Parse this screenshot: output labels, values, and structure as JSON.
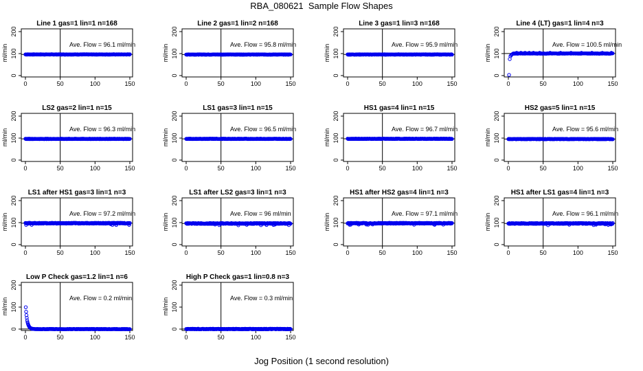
{
  "title": "RBA_080621  Sample Flow Shapes",
  "xlabel": "Jog Position (1 second resolution)",
  "chart_data": [
    {
      "type": "scatter",
      "title": "Line 1 gas=1 lin=1 n=168",
      "ylabel": "ml/min",
      "annotation": "Ave. Flow = 96.1  ml/min",
      "xlim": [
        0,
        150
      ],
      "ylim": [
        0,
        200
      ],
      "xticks": [
        0,
        50,
        100,
        150
      ],
      "yticks": [
        0,
        100,
        200
      ],
      "hline": 96.1,
      "vline": 50,
      "shape": "flat",
      "level": 96.1
    },
    {
      "type": "scatter",
      "title": "Line 2 gas=1 lin=2 n=168",
      "ylabel": "ml/min",
      "annotation": "Ave. Flow = 95.8  ml/min",
      "xlim": [
        0,
        150
      ],
      "ylim": [
        0,
        200
      ],
      "xticks": [
        0,
        50,
        100,
        150
      ],
      "yticks": [
        0,
        100,
        200
      ],
      "hline": 95.8,
      "vline": 50,
      "shape": "flat",
      "level": 95.8
    },
    {
      "type": "scatter",
      "title": "Line 3 gas=1 lin=3 n=168",
      "ylabel": "ml/min",
      "annotation": "Ave. Flow = 95.9  ml/min",
      "xlim": [
        0,
        150
      ],
      "ylim": [
        0,
        200
      ],
      "xticks": [
        0,
        50,
        100,
        150
      ],
      "yticks": [
        0,
        100,
        200
      ],
      "hline": 95.9,
      "vline": 50,
      "shape": "flat",
      "level": 95.9
    },
    {
      "type": "scatter",
      "title": "Line 4 (LT) gas=1 lin=4 n=3",
      "ylabel": "ml/min",
      "annotation": "Ave. Flow = 100.5  ml/min",
      "xlim": [
        0,
        150
      ],
      "ylim": [
        0,
        200
      ],
      "xticks": [
        0,
        50,
        100,
        150
      ],
      "yticks": [
        0,
        100,
        200
      ],
      "hline": 100.5,
      "vline": 50,
      "shape": "rise",
      "level": 100.5
    },
    {
      "type": "scatter",
      "title": "LS2 gas=2 lin=1 n=15",
      "ylabel": "ml/min",
      "annotation": "Ave. Flow = 96.3  ml/min",
      "xlim": [
        0,
        150
      ],
      "ylim": [
        0,
        200
      ],
      "xticks": [
        0,
        50,
        100,
        150
      ],
      "yticks": [
        0,
        100,
        200
      ],
      "hline": 96.3,
      "vline": 50,
      "shape": "flat",
      "level": 96.3
    },
    {
      "type": "scatter",
      "title": "LS1 gas=3 lin=1 n=15",
      "ylabel": "ml/min",
      "annotation": "Ave. Flow = 96.5  ml/min",
      "xlim": [
        0,
        150
      ],
      "ylim": [
        0,
        200
      ],
      "xticks": [
        0,
        50,
        100,
        150
      ],
      "yticks": [
        0,
        100,
        200
      ],
      "hline": 96.5,
      "vline": 50,
      "shape": "flat",
      "level": 96.5
    },
    {
      "type": "scatter",
      "title": "HS1 gas=4 lin=1 n=15",
      "ylabel": "ml/min",
      "annotation": "Ave. Flow = 96.7  ml/min",
      "xlim": [
        0,
        150
      ],
      "ylim": [
        0,
        200
      ],
      "xticks": [
        0,
        50,
        100,
        150
      ],
      "yticks": [
        0,
        100,
        200
      ],
      "hline": 96.7,
      "vline": 50,
      "shape": "flat",
      "level": 96.7
    },
    {
      "type": "scatter",
      "title": "HS2 gas=5 lin=1 n=15",
      "ylabel": "ml/min",
      "annotation": "Ave. Flow = 95.6  ml/min",
      "xlim": [
        0,
        150
      ],
      "ylim": [
        0,
        200
      ],
      "xticks": [
        0,
        50,
        100,
        150
      ],
      "yticks": [
        0,
        100,
        200
      ],
      "hline": 95.6,
      "vline": 50,
      "shape": "flat",
      "level": 95.6
    },
    {
      "type": "scatter",
      "title": "LS1 after HS1 gas=3 lin=1 n=3",
      "ylabel": "ml/min",
      "annotation": "Ave. Flow = 97.2  ml/min",
      "xlim": [
        0,
        150
      ],
      "ylim": [
        0,
        200
      ],
      "xticks": [
        0,
        50,
        100,
        150
      ],
      "yticks": [
        0,
        100,
        200
      ],
      "hline": 97.2,
      "vline": 50,
      "shape": "noisy",
      "level": 97.2
    },
    {
      "type": "scatter",
      "title": "LS1 after LS2 gas=3 lin=1 n=3",
      "ylabel": "ml/min",
      "annotation": "Ave. Flow = 96  ml/min",
      "xlim": [
        0,
        150
      ],
      "ylim": [
        0,
        200
      ],
      "xticks": [
        0,
        50,
        100,
        150
      ],
      "yticks": [
        0,
        100,
        200
      ],
      "hline": 96,
      "vline": 50,
      "shape": "noisy",
      "level": 96
    },
    {
      "type": "scatter",
      "title": "HS1 after HS2 gas=4 lin=1 n=3",
      "ylabel": "ml/min",
      "annotation": "Ave. Flow = 97.1  ml/min",
      "xlim": [
        0,
        150
      ],
      "ylim": [
        0,
        200
      ],
      "xticks": [
        0,
        50,
        100,
        150
      ],
      "yticks": [
        0,
        100,
        200
      ],
      "hline": 97.1,
      "vline": 50,
      "shape": "noisy",
      "level": 97.1
    },
    {
      "type": "scatter",
      "title": "HS1 after LS1 gas=4 lin=1 n=3",
      "ylabel": "ml/min",
      "annotation": "Ave. Flow = 96.1  ml/min",
      "xlim": [
        0,
        150
      ],
      "ylim": [
        0,
        200
      ],
      "xticks": [
        0,
        50,
        100,
        150
      ],
      "yticks": [
        0,
        100,
        200
      ],
      "hline": 96.1,
      "vline": 50,
      "shape": "noisy",
      "level": 96.1
    },
    {
      "type": "scatter",
      "title": "Low P Check gas=1.2 lin=1 n=6",
      "ylabel": "ml/min",
      "annotation": "Ave. Flow = 0.2  ml/min",
      "xlim": [
        0,
        150
      ],
      "ylim": [
        0,
        200
      ],
      "xticks": [
        0,
        50,
        100,
        150
      ],
      "yticks": [
        0,
        100,
        200
      ],
      "hline": 0.2,
      "vline": 50,
      "shape": "decay",
      "level": 0.2
    },
    {
      "type": "scatter",
      "title": "High P Check gas=1 lin=0.8 n=3",
      "ylabel": "ml/min",
      "annotation": "Ave. Flow = 0.3  ml/min",
      "xlim": [
        0,
        150
      ],
      "ylim": [
        0,
        200
      ],
      "xticks": [
        0,
        50,
        100,
        150
      ],
      "yticks": [
        0,
        100,
        200
      ],
      "hline": 0.3,
      "vline": 50,
      "shape": "flat-zero",
      "level": 0.3
    }
  ],
  "colors": {
    "points": "#0000ee",
    "lines": "#000000"
  }
}
